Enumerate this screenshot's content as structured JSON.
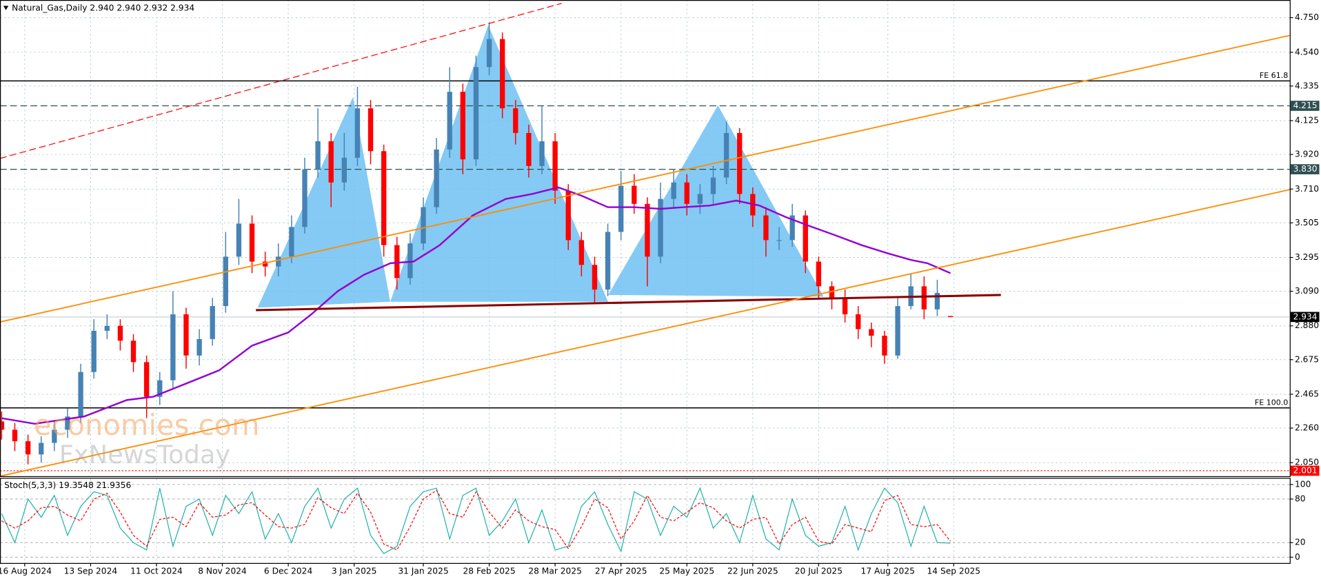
{
  "chart_data": [
    {
      "type": "candlestick",
      "title": "Natural_Gas,Daily  2.940 2.940 2.932 2.934",
      "xlim": [
        -0.5,
        391
      ],
      "ylim": [
        1.968,
        4.857
      ],
      "xticks": [
        {
          "value": 7,
          "label": "16 Aug 2024"
        },
        {
          "value": 27,
          "label": "13 Sep 2024"
        },
        {
          "value": 47,
          "label": "11 Oct 2024"
        },
        {
          "value": 67,
          "label": "8 Nov 2024"
        },
        {
          "value": 87,
          "label": "6 Dec 2024"
        },
        {
          "value": 107,
          "label": "3 Jan 2025"
        },
        {
          "value": 128,
          "label": "31 Jan 2025"
        },
        {
          "value": 148,
          "label": "28 Feb 2025"
        },
        {
          "value": 168,
          "label": "28 Mar 2025"
        },
        {
          "value": 188,
          "label": "27 Apr 2025"
        },
        {
          "value": 208,
          "label": "25 May 2025"
        },
        {
          "value": 228,
          "label": "22 Jun 2025"
        },
        {
          "value": 248,
          "label": "20 Jul 2025"
        },
        {
          "value": 269,
          "label": "17 Aug 2025"
        },
        {
          "value": 289,
          "label": "14 Sep 2025"
        }
      ],
      "yticks": [
        {
          "value": 4.75,
          "label": "4.750"
        },
        {
          "value": 4.54,
          "label": "4.540"
        },
        {
          "value": 4.335,
          "label": "4.335"
        },
        {
          "value": 4.125,
          "label": "4.125"
        },
        {
          "value": 3.92,
          "label": "3.920"
        },
        {
          "value": 3.71,
          "label": "3.710"
        },
        {
          "value": 3.505,
          "label": "3.505"
        },
        {
          "value": 3.295,
          "label": "3.295"
        },
        {
          "value": 3.09,
          "label": "3.090"
        },
        {
          "value": 2.88,
          "label": "2.880"
        },
        {
          "value": 2.675,
          "label": "2.675"
        },
        {
          "value": 2.465,
          "label": "2.465"
        },
        {
          "value": 2.26,
          "label": "2.260"
        },
        {
          "value": 2.05,
          "label": "2.050"
        }
      ],
      "grid": true,
      "up_color": "#4682b4",
      "down_color": "#ff0000",
      "x": [
        0,
        4,
        8,
        12,
        16,
        20,
        24,
        28,
        32,
        36,
        40,
        44,
        48,
        52,
        56,
        60,
        64,
        68,
        72,
        76,
        80,
        84,
        88,
        92,
        96,
        100,
        104,
        108,
        112,
        116,
        120,
        124,
        128,
        132,
        136,
        140,
        144,
        148,
        152,
        156,
        160,
        164,
        168,
        172,
        176,
        180,
        184,
        188,
        192,
        196,
        200,
        204,
        208,
        212,
        216,
        220,
        224,
        228,
        232,
        236,
        240,
        244,
        248,
        252,
        256,
        260,
        264,
        268,
        272,
        276,
        280,
        284,
        288
      ],
      "open": [
        2.3,
        2.25,
        2.18,
        2.1,
        2.17,
        2.25,
        2.33,
        2.6,
        2.85,
        2.88,
        2.79,
        2.66,
        2.45,
        2.55,
        2.95,
        2.7,
        2.8,
        3.0,
        3.3,
        3.5,
        3.27,
        3.24,
        3.3,
        3.48,
        3.83,
        4.0,
        3.75,
        3.9,
        4.2,
        3.94,
        3.37,
        3.17,
        3.38,
        3.6,
        3.95,
        4.3,
        3.89,
        4.45,
        4.62,
        4.2,
        4.05,
        3.85,
        4.0,
        3.7,
        3.4,
        3.25,
        3.1,
        3.45,
        3.73,
        3.62,
        3.3,
        3.65,
        3.75,
        3.62,
        3.68,
        3.78,
        4.05,
        3.68,
        3.55,
        3.4,
        3.4,
        3.55,
        3.27,
        3.12,
        3.05,
        2.95,
        2.86,
        2.82,
        2.7,
        3.0,
        3.12,
        2.98,
        2.94
      ],
      "high": [
        2.36,
        2.29,
        2.22,
        2.21,
        2.3,
        2.38,
        2.65,
        2.92,
        2.95,
        2.92,
        2.83,
        2.7,
        2.6,
        3.09,
        2.99,
        2.86,
        3.05,
        3.45,
        3.65,
        3.55,
        3.33,
        3.38,
        3.55,
        3.9,
        4.2,
        4.05,
        4.05,
        4.33,
        4.25,
        3.98,
        3.42,
        3.44,
        3.66,
        4.02,
        4.45,
        4.35,
        4.52,
        4.72,
        4.66,
        4.25,
        4.1,
        4.22,
        4.05,
        3.74,
        3.45,
        3.3,
        3.5,
        3.82,
        3.8,
        3.66,
        3.75,
        3.83,
        3.8,
        3.74,
        3.85,
        4.12,
        4.08,
        3.72,
        3.6,
        3.48,
        3.62,
        3.58,
        3.3,
        3.15,
        3.1,
        3.0,
        2.9,
        2.85,
        3.05,
        3.2,
        3.18,
        3.16,
        2.94
      ],
      "low": [
        2.19,
        2.12,
        2.04,
        2.05,
        2.12,
        2.2,
        2.29,
        2.56,
        2.8,
        2.73,
        2.6,
        2.32,
        2.4,
        2.5,
        2.62,
        2.64,
        2.76,
        2.96,
        3.25,
        3.2,
        3.18,
        3.18,
        3.26,
        3.44,
        3.78,
        3.6,
        3.7,
        3.85,
        3.86,
        3.3,
        3.1,
        3.13,
        3.34,
        3.56,
        3.9,
        3.8,
        3.85,
        4.4,
        4.14,
        3.98,
        3.78,
        3.8,
        3.62,
        3.34,
        3.18,
        3.02,
        3.06,
        3.4,
        3.56,
        3.12,
        3.26,
        3.6,
        3.55,
        3.56,
        3.62,
        3.74,
        3.62,
        3.48,
        3.3,
        3.34,
        3.36,
        3.2,
        3.05,
        2.98,
        2.9,
        2.8,
        2.75,
        2.65,
        2.68,
        2.98,
        2.92,
        2.94,
        2.932
      ],
      "close": [
        2.25,
        2.18,
        2.1,
        2.17,
        2.25,
        2.33,
        2.6,
        2.85,
        2.88,
        2.79,
        2.66,
        2.45,
        2.55,
        2.95,
        2.7,
        2.8,
        3.0,
        3.3,
        3.5,
        3.27,
        3.24,
        3.3,
        3.48,
        3.83,
        4.0,
        3.75,
        3.9,
        4.2,
        3.94,
        3.37,
        3.17,
        3.38,
        3.6,
        3.95,
        4.3,
        3.89,
        4.45,
        4.62,
        4.2,
        4.05,
        3.85,
        4.0,
        3.7,
        3.4,
        3.25,
        3.1,
        3.45,
        3.73,
        3.62,
        3.3,
        3.65,
        3.75,
        3.62,
        3.68,
        3.78,
        4.05,
        3.68,
        3.55,
        3.4,
        3.4,
        3.55,
        3.27,
        3.12,
        3.05,
        2.95,
        2.86,
        2.82,
        2.7,
        3.0,
        3.12,
        2.98,
        3.08,
        2.934
      ],
      "ma_color": "#9400d3",
      "ma_x": [
        0,
        10,
        25,
        38,
        46,
        56,
        66,
        76,
        87,
        94,
        102,
        110,
        118,
        125,
        133,
        143,
        153,
        161,
        169,
        176,
        184,
        192,
        200,
        207,
        215,
        223,
        230,
        238,
        246,
        253,
        261,
        269,
        276,
        281,
        288
      ],
      "ma_values": [
        2.32,
        2.286,
        2.33,
        2.43,
        2.45,
        2.53,
        2.61,
        2.76,
        2.84,
        2.95,
        3.09,
        3.19,
        3.26,
        3.27,
        3.37,
        3.55,
        3.65,
        3.68,
        3.72,
        3.67,
        3.6,
        3.6,
        3.59,
        3.6,
        3.61,
        3.64,
        3.61,
        3.54,
        3.48,
        3.43,
        3.37,
        3.32,
        3.28,
        3.26,
        3.2
      ],
      "levels": [
        {
          "value": 4.215,
          "label": "4.215",
          "color": "#2f4f4f",
          "style": "dashed"
        },
        {
          "value": 3.83,
          "label": "3.830",
          "color": "#2f4f4f",
          "style": "dashed"
        },
        {
          "value": 2.934,
          "label": "2.934",
          "color": "#000000",
          "style": "solid"
        },
        {
          "value": 2.001,
          "label": "2.001",
          "color": "#ff0000",
          "style": "dotted"
        }
      ],
      "annotations": [
        "FE 61.8",
        "FE 100.0"
      ]
    },
    {
      "type": "line",
      "title": "Stoch(5,3,3) 19.3548 21.9356",
      "ylim": [
        -8,
        108
      ],
      "yticks": [
        100,
        80,
        20,
        0
      ],
      "series": [
        {
          "color": "#20b2aa",
          "values": [
            60,
            20,
            80,
            55,
            85,
            30,
            70,
            90,
            85,
            40,
            20,
            10,
            95,
            15,
            70,
            80,
            30,
            85,
            60,
            90,
            25,
            60,
            20,
            70,
            95,
            40,
            80,
            95,
            30,
            5,
            15,
            70,
            90,
            95,
            25,
            85,
            95,
            30,
            50,
            80,
            20,
            65,
            10,
            15,
            70,
            90,
            45,
            8,
            90,
            80,
            30,
            70,
            55,
            95,
            40,
            60,
            20,
            85,
            25,
            10,
            80,
            30,
            15,
            20,
            70,
            10,
            60,
            95,
            75,
            15,
            70,
            20,
            19.3548
          ]
        },
        {
          "color": "#ff0000",
          "values": [
            50,
            40,
            50,
            68,
            70,
            58,
            50,
            80,
            88,
            62,
            30,
            15,
            52,
            55,
            42,
            75,
            55,
            58,
            72,
            75,
            58,
            42,
            40,
            45,
            82,
            68,
            60,
            88,
            62,
            18,
            10,
            42,
            80,
            92,
            60,
            55,
            90,
            62,
            40,
            65,
            50,
            42,
            38,
            12,
            42,
            80,
            68,
            25,
            50,
            85,
            55,
            50,
            62,
            75,
            68,
            50,
            40,
            52,
            55,
            18,
            45,
            55,
            22,
            18,
            45,
            40,
            35,
            78,
            85,
            45,
            42,
            45,
            21.9356
          ]
        }
      ]
    }
  ],
  "watermark": [
    "economies.com",
    "FxNewsToday"
  ]
}
